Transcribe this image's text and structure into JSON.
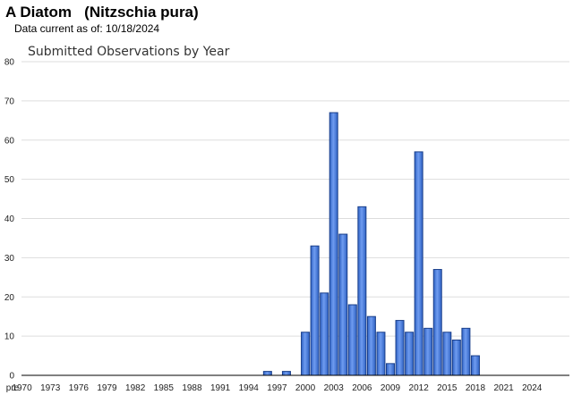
{
  "header": {
    "title": "A Diatom   (Nitzschia pura)",
    "data_current": "Data current as of: 10/18/2024"
  },
  "chart_data": {
    "type": "bar",
    "title": "Submitted Observations by Year",
    "xlabel": "",
    "ylabel": "",
    "ylim": [
      0,
      80
    ],
    "yticks": [
      0,
      10,
      20,
      30,
      40,
      50,
      60,
      70,
      80
    ],
    "grid": true,
    "x_tick_labels": [
      "pre",
      "1970",
      "1973",
      "1976",
      "1979",
      "1982",
      "1985",
      "1988",
      "1991",
      "1994",
      "1997",
      "2000",
      "2003",
      "2006",
      "2009",
      "2012",
      "2015",
      "2018",
      "2021",
      "2024"
    ],
    "categories": [
      "pre",
      "1970",
      "1971",
      "1972",
      "1973",
      "1974",
      "1975",
      "1976",
      "1977",
      "1978",
      "1979",
      "1980",
      "1981",
      "1982",
      "1983",
      "1984",
      "1985",
      "1986",
      "1987",
      "1988",
      "1989",
      "1990",
      "1991",
      "1992",
      "1993",
      "1994",
      "1995",
      "1996",
      "1997",
      "1998",
      "1999",
      "2000",
      "2001",
      "2002",
      "2003",
      "2004",
      "2005",
      "2006",
      "2007",
      "2008",
      "2009",
      "2010",
      "2011",
      "2012",
      "2013",
      "2014",
      "2015",
      "2016",
      "2017",
      "2018",
      "2019",
      "2020",
      "2021",
      "2022",
      "2023",
      "2024"
    ],
    "values": [
      0,
      0,
      0,
      0,
      0,
      0,
      0,
      0,
      0,
      0,
      0,
      0,
      0,
      0,
      0,
      0,
      0,
      0,
      0,
      0,
      0,
      0,
      0,
      0,
      0,
      0,
      0,
      1,
      0,
      1,
      0,
      11,
      33,
      21,
      67,
      36,
      18,
      43,
      15,
      11,
      3,
      14,
      11,
      57,
      12,
      27,
      11,
      9,
      12,
      5,
      0,
      0,
      0,
      0,
      0,
      0
    ],
    "colors": {
      "bar_fill": "#4a7fd8",
      "bar_stroke": "#1a3f8a",
      "grid": "#dddddd",
      "axis": "#000000"
    }
  }
}
